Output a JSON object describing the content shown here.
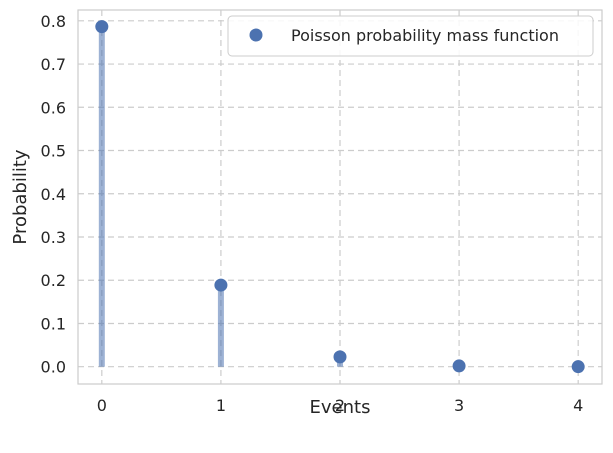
{
  "chart_data": {
    "type": "scatter",
    "title": "",
    "xlabel": "Events",
    "ylabel": "Probability",
    "xlim": [
      -0.2,
      4.2
    ],
    "ylim": [
      -0.04,
      0.825
    ],
    "xticks": [
      0,
      1,
      2,
      3,
      4
    ],
    "yticks": [
      0.0,
      0.1,
      0.2,
      0.3,
      0.4,
      0.5,
      0.6,
      0.7,
      0.8
    ],
    "grid": true,
    "legend_position": "top-right",
    "series": [
      {
        "name": "Poisson probability mass function",
        "x": [
          0,
          1,
          2,
          3,
          4
        ],
        "y": [
          0.7866,
          0.1888,
          0.0227,
          0.0018,
          0.0001
        ],
        "color": "#4c72b0",
        "style": "markers with vertical stems"
      }
    ]
  }
}
